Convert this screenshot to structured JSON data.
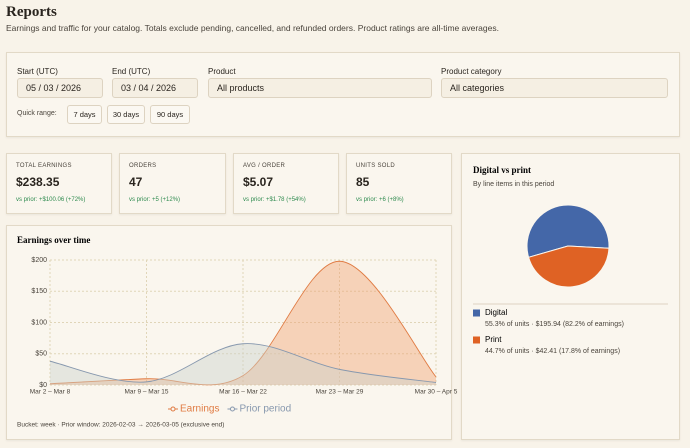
{
  "header": {
    "title": "Reports",
    "subtitle": "Earnings and traffic for your catalog. Totals exclude pending, cancelled, and refunded orders. Product ratings are all-time averages."
  },
  "filters": {
    "start": {
      "label": "Start (UTC)",
      "value": "05 / 03 / 2026"
    },
    "end": {
      "label": "End (UTC)",
      "value": "03 / 04 / 2026"
    },
    "product": {
      "label": "Product",
      "value": "All products"
    },
    "category": {
      "label": "Product category",
      "value": "All categories"
    },
    "quick_range": {
      "label": "Quick range:",
      "options": [
        "7 days",
        "30 days",
        "90 days"
      ]
    }
  },
  "kpis": [
    {
      "label": "TOTAL EARNINGS",
      "value": "$238.35",
      "delta": "vs prior: +$100.06 (+72%)"
    },
    {
      "label": "ORDERS",
      "value": "47",
      "delta": "vs prior: +5 (+12%)"
    },
    {
      "label": "AVG / ORDER",
      "value": "$5.07",
      "delta": "vs prior: +$1.78 (+54%)"
    },
    {
      "label": "UNITS SOLD",
      "value": "85",
      "delta": "vs prior: +6 (+8%)"
    }
  ],
  "chart_data": [
    {
      "type": "area",
      "title": "Earnings over time",
      "categories": [
        "Mar 2 – Mar 8",
        "Mar 9 – Mar 15",
        "Mar 16 – Mar 22",
        "Mar 23 – Mar 29",
        "Mar 30 – Apr 5"
      ],
      "series": [
        {
          "name": "Earnings",
          "color": "#e07b43",
          "values": [
            2,
            10,
            15,
            198,
            13
          ]
        },
        {
          "name": "Prior period",
          "color": "#8798ae",
          "values": [
            38,
            5,
            66,
            25,
            4
          ]
        }
      ],
      "ylim": [
        0,
        200
      ],
      "yticks": [
        {
          "value": 0,
          "label": "$0"
        },
        {
          "value": 50,
          "label": "$50"
        },
        {
          "value": 100,
          "label": "$100"
        },
        {
          "value": 150,
          "label": "$150"
        },
        {
          "value": 200,
          "label": "$200"
        }
      ],
      "grid": true,
      "footnote": "Bucket: week · Prior window: 2026-02-03 → 2026-03-05 (exclusive end)"
    },
    {
      "type": "pie",
      "title": "Digital vs print",
      "subtitle": "By line items in this period",
      "categories": [
        "Digital",
        "Print"
      ],
      "values": [
        55.3,
        44.7
      ],
      "colors": [
        "#4467a8",
        "#df6224"
      ],
      "details": [
        "55.3% of units · $195.94 (82.2% of earnings)",
        "44.7% of units · $42.41 (17.8% of earnings)"
      ]
    }
  ]
}
